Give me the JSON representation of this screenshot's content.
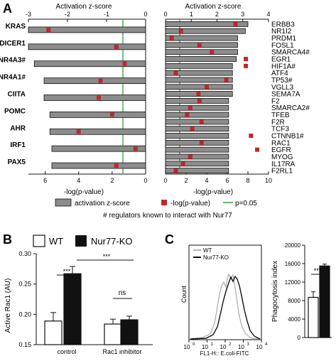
{
  "panelA": {
    "letter": "A",
    "left": {
      "top_axis_title": "Activation z-score",
      "bottom_axis_title": "-log(p-value)",
      "top_ticks": [
        "-3",
        "-2",
        "-1",
        "0"
      ],
      "bottom_ticks": [
        "6",
        "4",
        "2",
        "0"
      ],
      "genes": [
        "KRAS",
        "DICER1",
        "NR4A3#",
        "NR4A1#",
        "CIITA",
        "POMC",
        "AHR",
        "IRF1",
        "PAX5"
      ]
    },
    "right": {
      "top_axis_title": "Activation z-score",
      "bottom_axis_title": "-log(p-value)",
      "top_ticks": [
        "0",
        "1",
        "2",
        "3",
        "4"
      ],
      "bottom_ticks": [
        "0",
        "2",
        "4",
        "6",
        "8",
        "10"
      ],
      "genes": [
        "ERBB3",
        "NR1I2",
        "PRDM1",
        "FOSL1",
        "SMARCA4#",
        "EGR1",
        "HIF1A#",
        "ATF4",
        "TP53#",
        "VGLL3",
        "SEMA7A",
        "F2",
        "SMARCA2#",
        "TFEB",
        "F2R",
        "TCF3",
        "CTNNB1#",
        "RAC1",
        "EGFR",
        "MYOG",
        "IL17RA",
        "F2RL1"
      ]
    },
    "legend": {
      "activation": "activation z-score",
      "logp": "-log(p-value)",
      "pline": "p=0.05"
    },
    "footnote": "# regulators known to interact with Nur77"
  },
  "panelB": {
    "letter": "B",
    "legend": [
      "WT",
      "Nur77-KO"
    ],
    "ylabel": "Active Rac1 (AU)",
    "yticks": [
      "0.30",
      "0.25",
      "0.20",
      "0.15"
    ],
    "categories": [
      "control",
      "Rac1 inhibitor"
    ],
    "sig": [
      "***",
      "***",
      "ns"
    ]
  },
  "panelC": {
    "letter": "C",
    "legend": [
      "WT",
      "Nur77-KO"
    ],
    "ylabel": "Count",
    "xlabel": "FL1-H:: E.coli-FITC",
    "xticks": [
      "10",
      "10",
      "10",
      "10",
      "10"
    ],
    "xexp": [
      "0",
      "1",
      "2",
      "3",
      "4"
    ],
    "bar_ylabel": "Phagocytosis index",
    "bar_yticks": [
      "20000",
      "16000",
      "12000",
      "8000",
      "4000",
      "0"
    ],
    "sig": "***"
  },
  "colors": {
    "bar": "#8c8c8c",
    "marker": "#c0262d",
    "pline": "#3a9a4a",
    "ko": "#111111"
  },
  "chart_data": [
    {
      "type": "bar",
      "title": "",
      "xlabel": "Activation z-score / -log(p-value)",
      "categories": [
        "KRAS",
        "DICER1",
        "NR4A3#",
        "NR4A1#",
        "CIITA",
        "POMC",
        "AHR",
        "IRF1",
        "PAX5"
      ],
      "series": [
        {
          "name": "activation z-score",
          "values": [
            -3.0,
            -3.0,
            -2.85,
            -2.6,
            -2.6,
            -2.45,
            -2.45,
            -2.4,
            -2.4
          ]
        },
        {
          "name": "-log(p-value)",
          "values": [
            5.8,
            1.75,
            1.25,
            2.7,
            2.8,
            2.0,
            4.0,
            0.6,
            1.75
          ]
        }
      ],
      "xlim_zscore": [
        -3,
        0
      ],
      "xlim_logp": [
        7,
        0
      ],
      "p_threshold_logp": 1.3
    },
    {
      "type": "bar",
      "title": "",
      "xlabel": "Activation z-score / -log(p-value)",
      "categories": [
        "ERBB3",
        "NR1I2",
        "PRDM1",
        "FOSL1",
        "SMARCA4#",
        "EGR1",
        "HIF1A#",
        "ATF4",
        "TP53#",
        "VGLL3",
        "SEMA7A",
        "F2",
        "SMARCA2#",
        "TFEB",
        "F2R",
        "TCF3",
        "CTNNB1#",
        "RAC1",
        "EGFR",
        "MYOG",
        "IL17RA",
        "F2RL1"
      ],
      "series": [
        {
          "name": "activation z-score",
          "values": [
            3.2,
            3.1,
            2.8,
            2.8,
            2.8,
            2.75,
            2.6,
            2.6,
            2.6,
            2.6,
            2.6,
            2.45,
            2.45,
            2.45,
            2.45,
            2.45,
            2.45,
            2.45,
            2.45,
            2.45,
            2.45,
            2.45
          ]
        },
        {
          "name": "-log(p-value)",
          "values": [
            6.8,
            1.5,
            0.6,
            3.3,
            4.5,
            7.8,
            7.8,
            1.0,
            5.9,
            4.0,
            3.2,
            3.3,
            2.4,
            2.1,
            3.5,
            2.6,
            8.3,
            3.5,
            8.9,
            2.4,
            1.7,
            1.0
          ]
        }
      ],
      "xlim_zscore": [
        0,
        4
      ],
      "xlim_logp": [
        0,
        10
      ],
      "p_threshold_logp": 1.3
    },
    {
      "type": "bar",
      "title": "",
      "ylabel": "Active Rac1 (AU)",
      "categories": [
        "control",
        "Rac1 inhibitor"
      ],
      "series": [
        {
          "name": "WT",
          "values": [
            0.189,
            0.184
          ]
        },
        {
          "name": "Nur77-KO",
          "values": [
            0.267,
            0.191
          ]
        }
      ],
      "errors": [
        [
          0.014,
          0.008
        ],
        [
          0.012,
          0.006
        ]
      ],
      "ylim": [
        0.15,
        0.3
      ]
    },
    {
      "type": "bar",
      "title": "",
      "ylabel": "Phagocytosis index",
      "categories": [
        "WT",
        "Nur77-KO"
      ],
      "values": [
        8700,
        15500
      ],
      "errors": [
        1200,
        400
      ],
      "ylim": [
        0,
        20000
      ]
    }
  ]
}
